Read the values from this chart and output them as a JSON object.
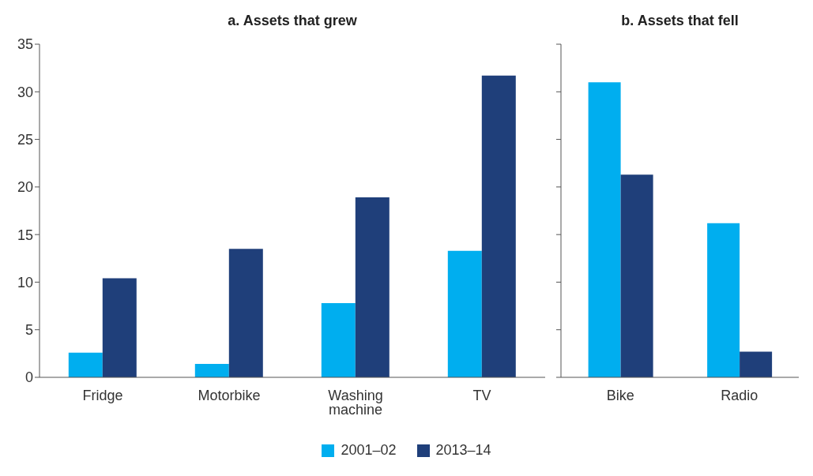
{
  "chart_data": [
    {
      "type": "bar",
      "title": "a. Assets that grew",
      "categories": [
        "Fridge",
        "Motorbike",
        "Washing machine",
        "TV"
      ],
      "series": [
        {
          "name": "2001–02",
          "color": "#00aeef",
          "values": [
            2.6,
            1.4,
            7.8,
            13.3
          ]
        },
        {
          "name": "2013–14",
          "color": "#1f3f7a",
          "values": [
            10.4,
            13.5,
            18.9,
            31.7
          ]
        }
      ],
      "ylim": [
        0,
        35
      ],
      "yticks": [
        0,
        5,
        10,
        15,
        20,
        25,
        30,
        35
      ],
      "grid": false,
      "legend": "bottom"
    },
    {
      "type": "bar",
      "title": "b. Assets that fell",
      "categories": [
        "Bike",
        "Radio"
      ],
      "series": [
        {
          "color": "#00aeef",
          "values": [
            31.0,
            16.2
          ]
        },
        {
          "color": "#1f3f7a",
          "values": [
            21.3,
            2.7
          ]
        }
      ],
      "ylim": [
        0,
        35
      ],
      "yticks": [
        0,
        5,
        10,
        15,
        20,
        25,
        30,
        35
      ],
      "grid": false,
      "tick_labels": "x"
    }
  ]
}
